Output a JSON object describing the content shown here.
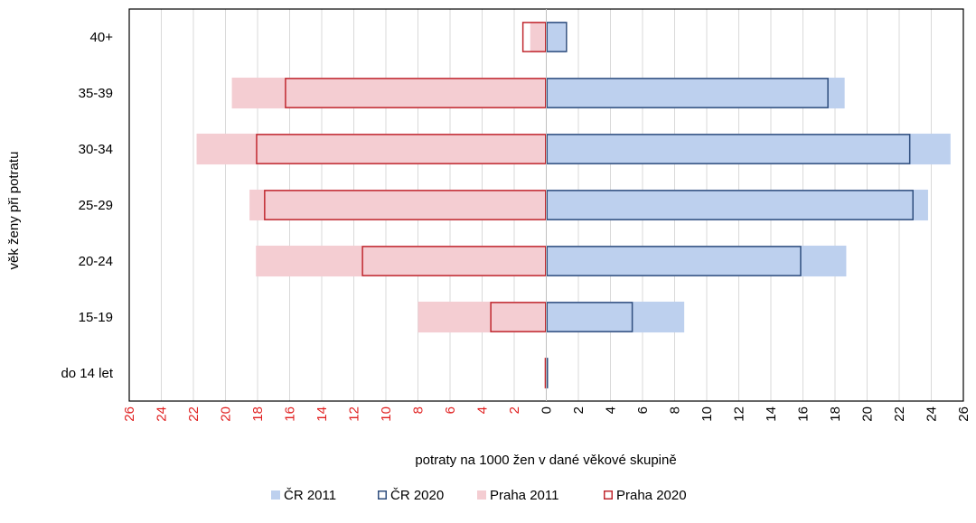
{
  "chart_data": {
    "type": "bar",
    "orientation": "horizontal",
    "layout": "butterfly",
    "categories": [
      "do 14 let",
      "15-19",
      "20-24",
      "25-29",
      "30-34",
      "35-39",
      "40+"
    ],
    "series": [
      {
        "name": "ČR 2011",
        "side": "right",
        "style": "filled",
        "color": "#bdd0ee",
        "values": [
          0.1,
          8.6,
          18.7,
          23.8,
          25.2,
          18.6,
          1.2
        ]
      },
      {
        "name": "ČR 2020",
        "side": "right",
        "style": "outline",
        "color": "#2f4e7e",
        "values": [
          0.1,
          5.4,
          15.9,
          22.9,
          22.7,
          17.6,
          1.3
        ]
      },
      {
        "name": "Praha 2011",
        "side": "left",
        "style": "filled",
        "color": "#f4cdd2",
        "values": [
          0.1,
          8.0,
          18.1,
          18.5,
          21.8,
          19.6,
          1.0
        ]
      },
      {
        "name": "Praha 2020",
        "side": "left",
        "style": "outline",
        "color": "#c0282f",
        "values": [
          0.1,
          3.5,
          11.5,
          17.6,
          18.1,
          16.3,
          1.5
        ]
      }
    ],
    "xlabel": "potraty na 1000 žen v dané věkové skupině",
    "ylabel": "věk ženy při potratu",
    "xlim": [
      -26,
      26
    ],
    "xticks": [
      26,
      24,
      22,
      20,
      18,
      16,
      14,
      12,
      10,
      8,
      6,
      4,
      2,
      0,
      2,
      4,
      6,
      8,
      10,
      12,
      14,
      16,
      18,
      20,
      22,
      24,
      26
    ],
    "left_tick_color": "#e02020",
    "right_tick_color": "#000000",
    "grid": "vertical",
    "legend": "bottom"
  }
}
